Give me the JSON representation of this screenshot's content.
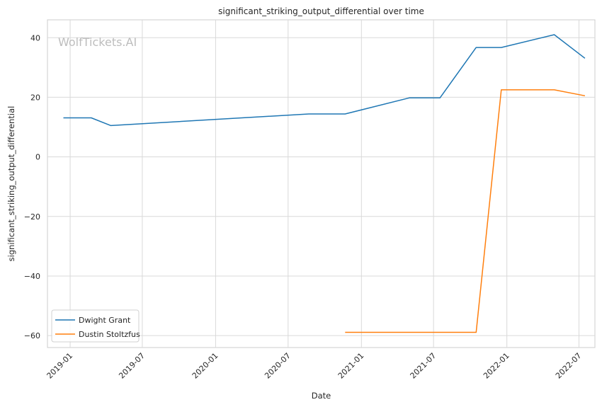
{
  "chart_data": {
    "type": "line",
    "title": "significant_striking_output_differential over time",
    "xlabel": "Date",
    "ylabel": "significant_striking_output_differential",
    "watermark": "WolfTickets.AI",
    "x_ticks": [
      "2019-01",
      "2019-07",
      "2020-01",
      "2020-07",
      "2021-01",
      "2021-07",
      "2022-01",
      "2022-07"
    ],
    "y_ticks": [
      40,
      20,
      0,
      -20,
      -40,
      -60
    ],
    "xlim": [
      "2018-11-05",
      "2022-08-10"
    ],
    "ylim": [
      -64,
      46
    ],
    "grid": true,
    "legend_position": "lower-left",
    "series": [
      {
        "name": "Dwight Grant",
        "color": "#1f77b4",
        "points": [
          {
            "x": "2018-12-15",
            "y": 13.1
          },
          {
            "x": "2019-02-23",
            "y": 13.1
          },
          {
            "x": "2019-04-13",
            "y": 10.5
          },
          {
            "x": "2020-08-22",
            "y": 14.4
          },
          {
            "x": "2020-11-21",
            "y": 14.4
          },
          {
            "x": "2021-05-01",
            "y": 19.8
          },
          {
            "x": "2021-07-17",
            "y": 19.8
          },
          {
            "x": "2021-10-16",
            "y": 36.7
          },
          {
            "x": "2021-12-18",
            "y": 36.7
          },
          {
            "x": "2022-04-30",
            "y": 41.0
          },
          {
            "x": "2022-07-16",
            "y": 33.1
          }
        ]
      },
      {
        "name": "Dustin Stoltzfus",
        "color": "#ff7f0e",
        "points": [
          {
            "x": "2020-11-21",
            "y": -58.9
          },
          {
            "x": "2021-10-16",
            "y": -58.9
          },
          {
            "x": "2021-12-18",
            "y": 22.5
          },
          {
            "x": "2022-04-30",
            "y": 22.5
          },
          {
            "x": "2022-07-16",
            "y": 20.5
          }
        ]
      }
    ]
  }
}
